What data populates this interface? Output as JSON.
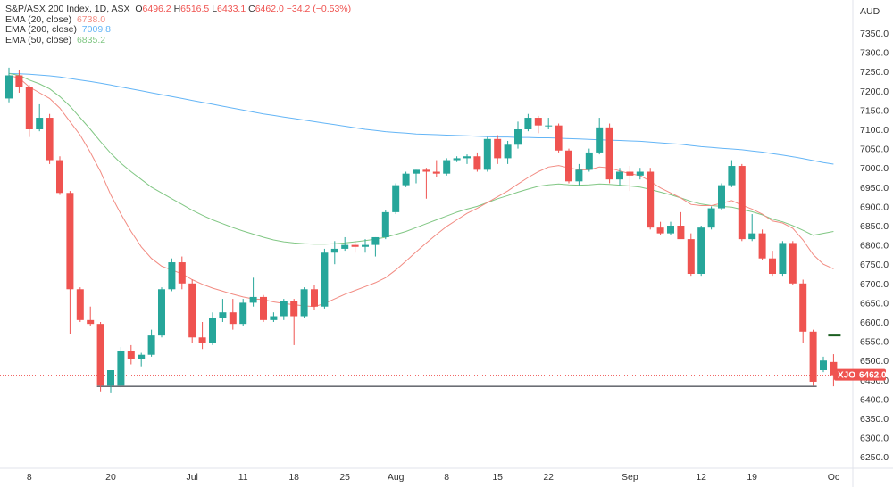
{
  "colors": {
    "up": "#26a69a",
    "down": "#ef5350",
    "ema20": "#f28b82",
    "ema200": "#64b5f6",
    "ema50": "#81c784",
    "legend_text": "#333333",
    "axis_text": "#333333",
    "support_line": "#131722",
    "marker": "#1b5e20"
  },
  "legend": {
    "symbol": "S&P/ASX 200 Index, 1D, ASX",
    "o_label": "O",
    "o_value": "6496.2",
    "h_label": "H",
    "h_value": "6516.5",
    "l_label": "L",
    "l_value": "6433.1",
    "c_label": "C",
    "c_value": "6462.0",
    "change": "−34.2 (−0.53%)",
    "ema20_label": "EMA (20, close)",
    "ema20_value": "6738.0",
    "ema200_label": "EMA (200, close)",
    "ema200_value": "7009.8",
    "ema50_label": "EMA (50, close)",
    "ema50_value": "6835.2"
  },
  "price_tag": {
    "symbol": "XJO",
    "value": "6462.0"
  },
  "chart_data": {
    "type": "candlestick",
    "title": "S&P/ASX 200 Index, 1D, ASX",
    "currency": "AUD",
    "ylim": [
      6200,
      7400
    ],
    "y_ticks": [
      "7350.0",
      "7300.0",
      "7250.0",
      "7200.0",
      "7150.0",
      "7100.0",
      "7050.0",
      "7000.0",
      "6950.0",
      "6900.0",
      "6850.0",
      "6800.0",
      "6750.0",
      "6700.0",
      "6650.0",
      "6600.0",
      "6550.0",
      "6500.0",
      "6450.0",
      "6400.0",
      "6350.0",
      "6300.0",
      "6250.0"
    ],
    "x_ticks": [
      {
        "label": "8",
        "index": 2
      },
      {
        "label": "20",
        "index": 10
      },
      {
        "label": "Jul",
        "index": 18
      },
      {
        "label": "11",
        "index": 23
      },
      {
        "label": "18",
        "index": 28
      },
      {
        "label": "25",
        "index": 33
      },
      {
        "label": "Aug",
        "index": 38
      },
      {
        "label": "8",
        "index": 43
      },
      {
        "label": "15",
        "index": 48
      },
      {
        "label": "22",
        "index": 53
      },
      {
        "label": "Sep",
        "index": 61
      },
      {
        "label": "12",
        "index": 68
      },
      {
        "label": "19",
        "index": 73
      },
      {
        "label": "Oc",
        "index": 81
      }
    ],
    "ohlc": [
      [
        7180,
        7260,
        7170,
        7240
      ],
      [
        7240,
        7255,
        7195,
        7210
      ],
      [
        7210,
        7215,
        7080,
        7100
      ],
      [
        7100,
        7165,
        7095,
        7130
      ],
      [
        7130,
        7140,
        7010,
        7020
      ],
      [
        7020,
        7030,
        6930,
        6935
      ],
      [
        6935,
        6940,
        6570,
        6685
      ],
      [
        6685,
        6690,
        6600,
        6605
      ],
      [
        6605,
        6640,
        6590,
        6595
      ],
      [
        6595,
        6600,
        6420,
        6435
      ],
      [
        6435,
        6470,
        6415,
        6475
      ],
      [
        6435,
        6535,
        6430,
        6525
      ],
      [
        6525,
        6540,
        6490,
        6505
      ],
      [
        6505,
        6520,
        6485,
        6515
      ],
      [
        6515,
        6580,
        6510,
        6565
      ],
      [
        6565,
        6690,
        6560,
        6685
      ],
      [
        6685,
        6765,
        6680,
        6755
      ],
      [
        6755,
        6770,
        6685,
        6700
      ],
      [
        6700,
        6710,
        6545,
        6560
      ],
      [
        6560,
        6600,
        6530,
        6545
      ],
      [
        6545,
        6625,
        6540,
        6610
      ],
      [
        6610,
        6660,
        6600,
        6625
      ],
      [
        6625,
        6660,
        6580,
        6595
      ],
      [
        6595,
        6660,
        6590,
        6650
      ],
      [
        6650,
        6715,
        6640,
        6665
      ],
      [
        6665,
        6670,
        6600,
        6605
      ],
      [
        6605,
        6625,
        6600,
        6615
      ],
      [
        6615,
        6660,
        6605,
        6655
      ],
      [
        6655,
        6660,
        6540,
        6615
      ],
      [
        6615,
        6690,
        6610,
        6685
      ],
      [
        6685,
        6695,
        6630,
        6640
      ],
      [
        6640,
        6790,
        6635,
        6780
      ],
      [
        6780,
        6810,
        6750,
        6790
      ],
      [
        6790,
        6820,
        6785,
        6800
      ],
      [
        6800,
        6810,
        6780,
        6795
      ],
      [
        6795,
        6815,
        6780,
        6800
      ],
      [
        6800,
        6820,
        6770,
        6820
      ],
      [
        6820,
        6890,
        6815,
        6885
      ],
      [
        6885,
        6960,
        6880,
        6955
      ],
      [
        6955,
        6990,
        6950,
        6985
      ],
      [
        6985,
        6995,
        6960,
        6995
      ],
      [
        6995,
        7000,
        6920,
        6990
      ],
      [
        6990,
        7020,
        6975,
        6985
      ],
      [
        6985,
        7025,
        6980,
        7020
      ],
      [
        7020,
        7030,
        7015,
        7025
      ],
      [
        7025,
        7035,
        7010,
        7030
      ],
      [
        7030,
        7040,
        6990,
        6995
      ],
      [
        6995,
        7080,
        6990,
        7075
      ],
      [
        7075,
        7085,
        7010,
        7025
      ],
      [
        7025,
        7070,
        7010,
        7060
      ],
      [
        7060,
        7120,
        7050,
        7100
      ],
      [
        7100,
        7140,
        7095,
        7130
      ],
      [
        7130,
        7135,
        7090,
        7110
      ],
      [
        7110,
        7130,
        7100,
        7110
      ],
      [
        7110,
        7115,
        7040,
        7045
      ],
      [
        7045,
        7050,
        6960,
        6965
      ],
      [
        6965,
        7010,
        6955,
        6995
      ],
      [
        6995,
        7050,
        6990,
        7040
      ],
      [
        7040,
        7130,
        7035,
        7105
      ],
      [
        7105,
        7115,
        6960,
        6970
      ],
      [
        6970,
        7000,
        6955,
        6990
      ],
      [
        6990,
        7005,
        6940,
        6980
      ],
      [
        6980,
        7000,
        6970,
        6990
      ],
      [
        6990,
        7000,
        6840,
        6845
      ],
      [
        6845,
        6860,
        6825,
        6830
      ],
      [
        6830,
        6860,
        6825,
        6850
      ],
      [
        6850,
        6885,
        6820,
        6815
      ],
      [
        6815,
        6830,
        6720,
        6725
      ],
      [
        6725,
        6850,
        6720,
        6845
      ],
      [
        6845,
        6900,
        6840,
        6895
      ],
      [
        6895,
        6960,
        6890,
        6955
      ],
      [
        6955,
        7020,
        6950,
        7005
      ],
      [
        7005,
        7010,
        6810,
        6815
      ],
      [
        6815,
        6880,
        6810,
        6830
      ],
      [
        6830,
        6840,
        6760,
        6765
      ],
      [
        6765,
        6785,
        6720,
        6725
      ],
      [
        6725,
        6810,
        6720,
        6805
      ],
      [
        6805,
        6810,
        6695,
        6700
      ],
      [
        6700,
        6710,
        6545,
        6575
      ],
      [
        6575,
        6580,
        6435,
        6445
      ],
      [
        6475,
        6510,
        6470,
        6500
      ],
      [
        6496.2,
        6516.5,
        6433.1,
        6462.0
      ]
    ],
    "ema20": [
      7240,
      7233,
      7210,
      7195,
      7180,
      7155,
      7120,
      7085,
      7040,
      6990,
      6930,
      6880,
      6835,
      6795,
      6765,
      6745,
      6735,
      6725,
      6710,
      6698,
      6688,
      6680,
      6672,
      6665,
      6660,
      6658,
      6652,
      6648,
      6645,
      6642,
      6640,
      6648,
      6660,
      6672,
      6682,
      6692,
      6702,
      6715,
      6735,
      6758,
      6782,
      6805,
      6827,
      6848,
      6865,
      6882,
      6895,
      6910,
      6925,
      6940,
      6958,
      6975,
      6990,
      7002,
      7006,
      7000,
      6995,
      6995,
      7002,
      7000,
      6992,
      6985,
      6980,
      6965,
      6948,
      6935,
      6922,
      6905,
      6902,
      6902,
      6908,
      6915,
      6903,
      6893,
      6880,
      6862,
      6857,
      6843,
      6813,
      6775,
      6750,
      6738
    ],
    "ema50": [
      7245,
      7240,
      7228,
      7218,
      7205,
      7185,
      7160,
      7130,
      7100,
      7068,
      7038,
      7012,
      6990,
      6970,
      6950,
      6935,
      6920,
      6905,
      6890,
      6877,
      6865,
      6855,
      6845,
      6836,
      6828,
      6820,
      6813,
      6808,
      6805,
      6803,
      6802,
      6802,
      6803,
      6805,
      6808,
      6811,
      6815,
      6820,
      6827,
      6835,
      6845,
      6855,
      6865,
      6875,
      6885,
      6893,
      6900,
      6910,
      6920,
      6928,
      6937,
      6945,
      6952,
      6956,
      6958,
      6956,
      6955,
      6956,
      6958,
      6957,
      6955,
      6953,
      6950,
      6944,
      6937,
      6930,
      6922,
      6913,
      6906,
      6902,
      6900,
      6898,
      6892,
      6886,
      6878,
      6867,
      6860,
      6850,
      6838,
      6825,
      6830,
      6835
    ],
    "ema200": [
      7245,
      7244,
      7243,
      7241,
      7239,
      7236,
      7232,
      7228,
      7224,
      7220,
      7215,
      7210,
      7205,
      7200,
      7195,
      7190,
      7185,
      7180,
      7175,
      7170,
      7165,
      7160,
      7155,
      7150,
      7145,
      7140,
      7136,
      7132,
      7128,
      7124,
      7120,
      7116,
      7112,
      7108,
      7104,
      7100,
      7097,
      7094,
      7092,
      7090,
      7088,
      7087,
      7086,
      7085,
      7084,
      7083,
      7082,
      7081,
      7080,
      7080,
      7079,
      7079,
      7078,
      7078,
      7077,
      7076,
      7075,
      7074,
      7073,
      7072,
      7071,
      7070,
      7069,
      7067,
      7065,
      7063,
      7061,
      7058,
      7055,
      7053,
      7051,
      7049,
      7047,
      7044,
      7041,
      7037,
      7033,
      7029,
      7024,
      7019,
      7014,
      7009.8
    ],
    "support_level": 6433,
    "marker_level": 6565
  }
}
